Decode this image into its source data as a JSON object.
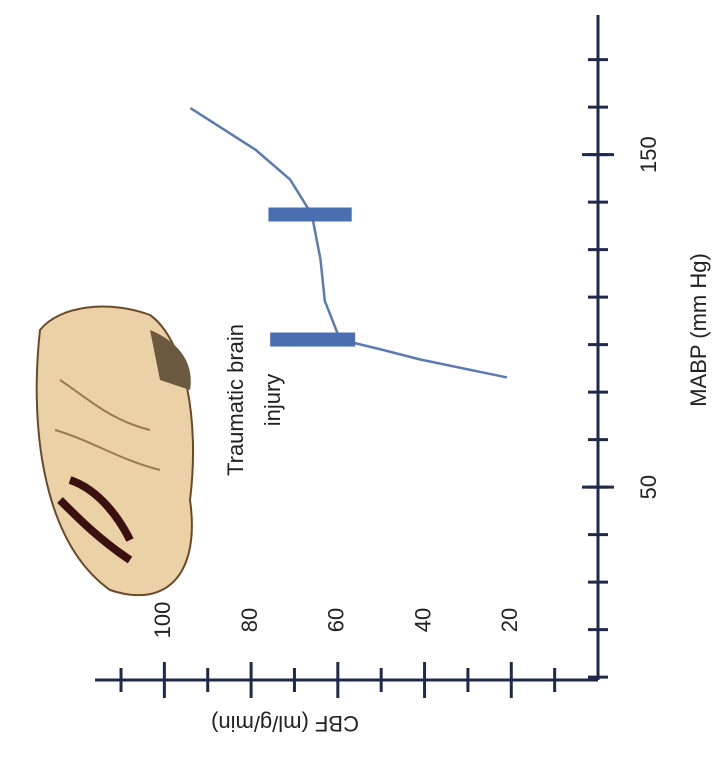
{
  "chart_data": {
    "type": "line",
    "xlabel": "MABP (mm Hg)",
    "ylabel": "CBF (ml/g/min)",
    "annotation": "Traumatic brain injury",
    "xlim": [
      -8,
      192
    ],
    "xticks": [
      50,
      150
    ],
    "ylim": [
      0,
      116
    ],
    "yticks": [
      20,
      40,
      60,
      80,
      100
    ],
    "series": [
      {
        "color": "#5b7bb0",
        "x": [
          83,
          88.4,
          91.4,
          94.4,
          106,
          118.5,
          132,
          142.5,
          151.5,
          164
        ],
        "values": [
          21,
          41,
          50,
          59.5,
          63,
          64,
          66,
          71,
          79,
          94
        ]
      }
    ],
    "error_bars": {
      "color": "#4a6fb0",
      "bars": [
        {
          "x": 94.4,
          "low": 56,
          "high": 75.6
        },
        {
          "x": 132,
          "low": 56.8,
          "high": 76
        }
      ]
    }
  }
}
